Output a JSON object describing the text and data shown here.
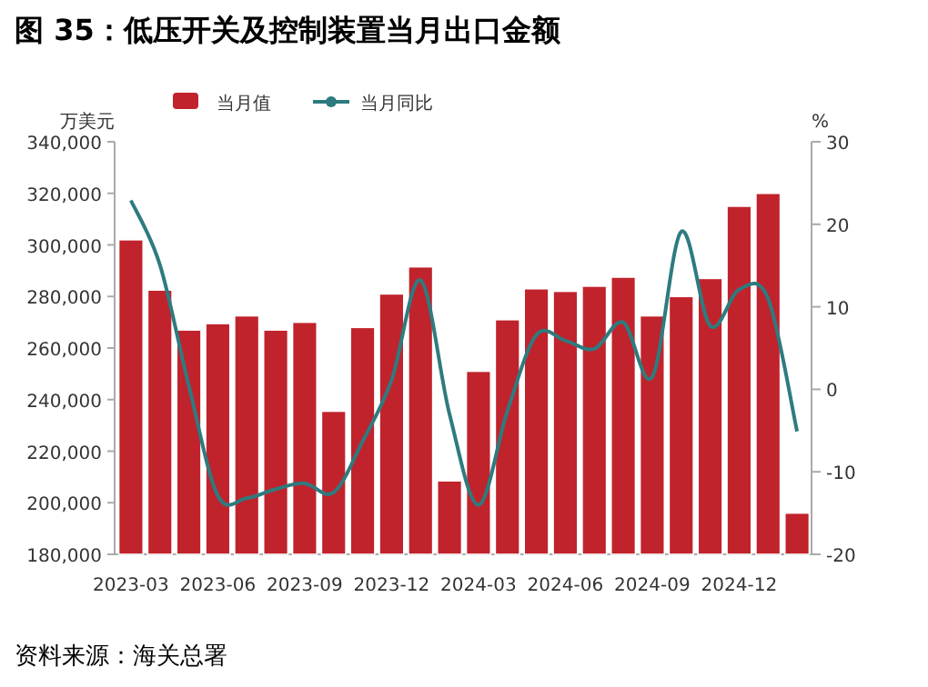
{
  "chart_data": {
    "type": "bar",
    "title": "图 35：低压开关及控制装置当月出口金额",
    "ylabel": "万美元",
    "y2label": "%",
    "annotations": [
      "资料来源：海关总署"
    ],
    "categories": [
      "2023-03",
      null,
      null,
      "2023-06",
      null,
      null,
      "2023-09",
      null,
      null,
      "2023-12",
      null,
      null,
      "2024-03",
      null,
      null,
      "2024-06",
      null,
      null,
      "2024-09",
      null,
      null,
      "2024-12",
      null,
      null
    ],
    "series": [
      {
        "name": "当月值",
        "color": "#c0232c",
        "values": [
          302000,
          282500,
          267000,
          269500,
          272500,
          267000,
          270000,
          235500,
          268000,
          281000,
          291500,
          208500,
          251000,
          271000,
          283000,
          282000,
          284000,
          287500,
          272500,
          280000,
          287000,
          315000,
          320000,
          196000
        ]
      },
      {
        "name": "当月同比",
        "type": "line",
        "axis": "y2",
        "color": "#2e7b7f",
        "values": [
          22.9,
          15.1,
          0.4,
          -12.9,
          -13.2,
          -12.1,
          -11.4,
          -12.5,
          -6.3,
          1.1,
          13.2,
          -3.0,
          -14.0,
          -2.6,
          6.6,
          5.9,
          4.9,
          8.1,
          1.5,
          19.1,
          7.7,
          12.1,
          11.0,
          -5.1
        ]
      }
    ],
    "ylim": [
      180000,
      340000
    ],
    "yticks": [
      {
        "value": 180000,
        "label": "180,000"
      },
      {
        "value": 200000,
        "label": "200,000"
      },
      {
        "value": 220000,
        "label": "220,000"
      },
      {
        "value": 240000,
        "label": "240,000"
      },
      {
        "value": 260000,
        "label": "260,000"
      },
      {
        "value": 280000,
        "label": "280,000"
      },
      {
        "value": 300000,
        "label": "300,000"
      },
      {
        "value": 320000,
        "label": "320,000"
      },
      {
        "value": 340000,
        "label": "340,000"
      }
    ],
    "y2lim": [
      -20,
      30
    ],
    "y2ticks": [
      -20,
      -10,
      0,
      10,
      20,
      30
    ],
    "legend": "top"
  }
}
